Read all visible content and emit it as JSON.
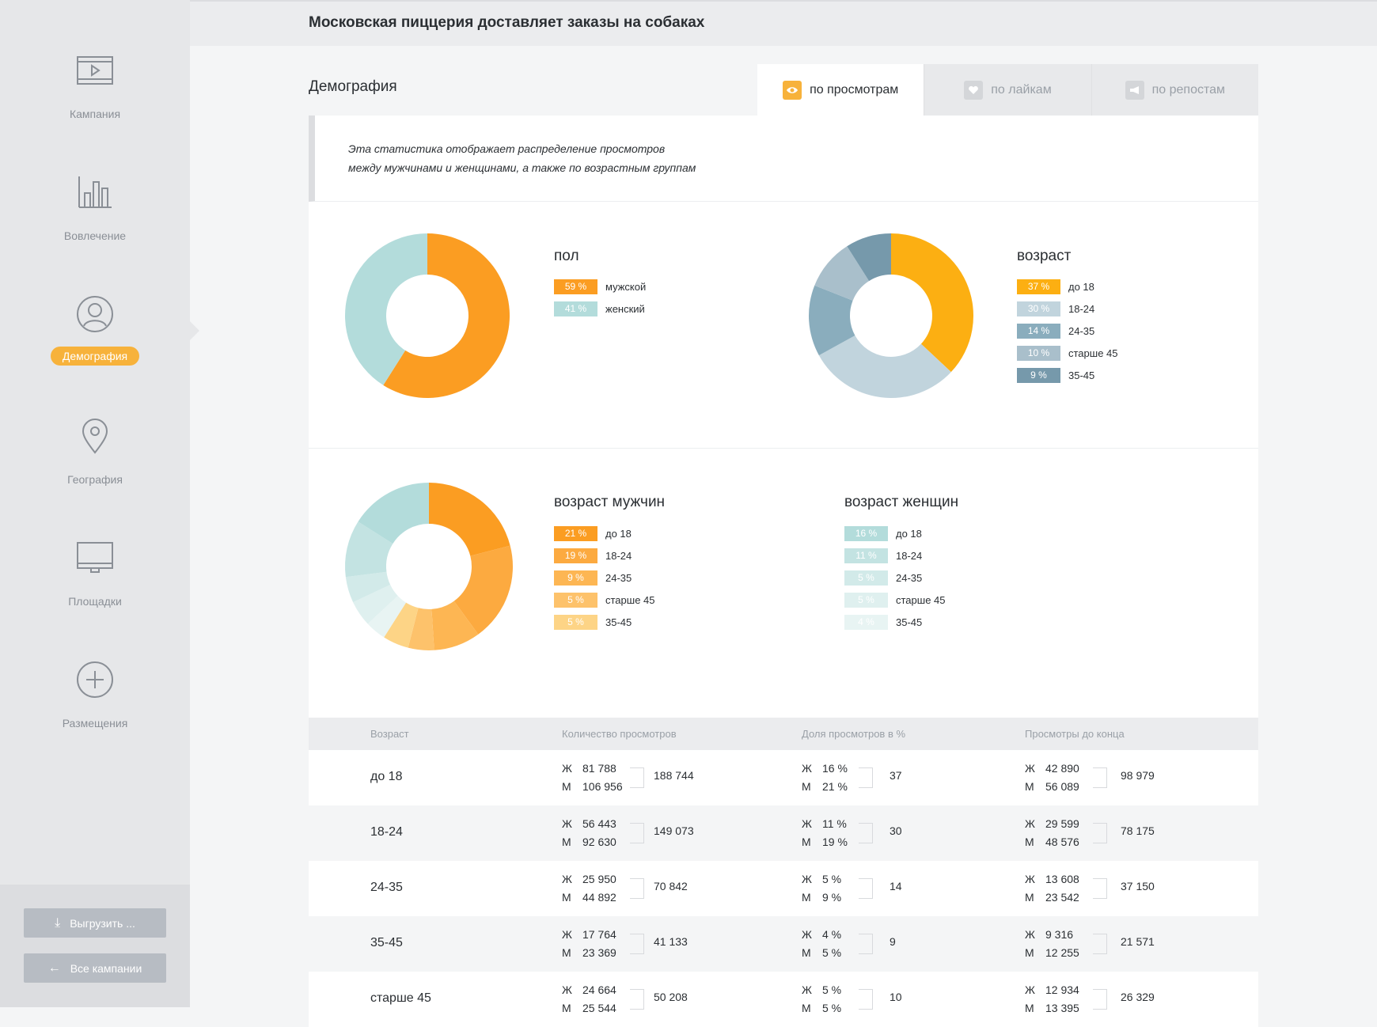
{
  "header": {
    "title": "Московская пиццерия доставляет заказы на собаках"
  },
  "sidebar": {
    "items": [
      {
        "label": "Кампания",
        "icon": "video-icon"
      },
      {
        "label": "Вовлечение",
        "icon": "bar-chart-icon"
      },
      {
        "label": "Демография",
        "icon": "user-icon"
      },
      {
        "label": "География",
        "icon": "map-pin-icon"
      },
      {
        "label": "Площадки",
        "icon": "monitor-icon"
      },
      {
        "label": "Размещения",
        "icon": "plus-circle-icon"
      }
    ],
    "active": "Демография",
    "export_label": "Выгрузить ...",
    "back_label": "Все кампании"
  },
  "section": {
    "title": "Демография",
    "tabs": [
      {
        "label": "по просмотрам",
        "icon": "eye-icon",
        "active": true
      },
      {
        "label": "по лайкам",
        "icon": "heart-icon",
        "active": false
      },
      {
        "label": "по репостам",
        "icon": "megaphone-icon",
        "active": false
      }
    ],
    "description": "Эта статистика отображает распределение просмотров между мужчинами и женщинами, а также по возрастным группам"
  },
  "chart_data": [
    {
      "type": "pie",
      "title": "пол",
      "slices": [
        {
          "label": "мужской",
          "value": 59,
          "value_label": "59 %",
          "color": "#fb9d22"
        },
        {
          "label": "женский",
          "value": 41,
          "value_label": "41 %",
          "color": "#b3dcdb"
        }
      ]
    },
    {
      "type": "pie",
      "title": "возраст",
      "slices": [
        {
          "label": "до 18",
          "value": 37,
          "value_label": "37 %",
          "color": "#fcaf12"
        },
        {
          "label": "18-24",
          "value": 30,
          "value_label": "30 %",
          "color": "#c1d4dd"
        },
        {
          "label": "24-35",
          "value": 14,
          "value_label": "14 %",
          "color": "#8aadbd"
        },
        {
          "label": "старше 45",
          "value": 10,
          "value_label": "10 %",
          "color": "#a9bfcb"
        },
        {
          "label": "35-45",
          "value": 9,
          "value_label": "9 %",
          "color": "#7699ab"
        }
      ]
    },
    {
      "type": "pie",
      "title": "возраст мужчин",
      "legend": [
        {
          "label": "до 18",
          "value": 21,
          "value_label": "21 %",
          "color": "#fb9d22"
        },
        {
          "label": "18-24",
          "value": 19,
          "value_label": "19 %",
          "color": "#fcaa40"
        },
        {
          "label": "24-35",
          "value": 9,
          "value_label": "9 %",
          "color": "#fdb653"
        },
        {
          "label": "старше 45",
          "value": 5,
          "value_label": "5 %",
          "color": "#fdc26b"
        },
        {
          "label": "35-45",
          "value": 5,
          "value_label": "5 %",
          "color": "#fdd486"
        }
      ]
    },
    {
      "type": "pie",
      "title": "возраст женщин",
      "legend": [
        {
          "label": "до 18",
          "value": 16,
          "value_label": "16 %",
          "color": "#b3dcdb"
        },
        {
          "label": "18-24",
          "value": 11,
          "value_label": "11 %",
          "color": "#c3e3e2"
        },
        {
          "label": "24-35",
          "value": 5,
          "value_label": "5 %",
          "color": "#d2eae9"
        },
        {
          "label": "старше 45",
          "value": 5,
          "value_label": "5 %",
          "color": "#dff0ef"
        },
        {
          "label": "35-45",
          "value": 4,
          "value_label": "4 %",
          "color": "#e8f4f3"
        }
      ]
    }
  ],
  "table": {
    "headers": [
      "Возраст",
      "Количество просмотров",
      "Доля просмотров в %",
      "Просмотры до конца"
    ],
    "f_label": "Ж",
    "m_label": "М",
    "rows": [
      {
        "age": "до 18",
        "views": {
          "f": "81 788",
          "m": "106 956",
          "total": "188 744"
        },
        "share": {
          "f": "16 %",
          "m": "21 %",
          "total": "37"
        },
        "complete": {
          "f": "42 890",
          "m": "56 089",
          "total": "98 979"
        }
      },
      {
        "age": "18-24",
        "views": {
          "f": "56 443",
          "m": "92 630",
          "total": "149 073"
        },
        "share": {
          "f": "11 %",
          "m": "19 %",
          "total": "30"
        },
        "complete": {
          "f": "29 599",
          "m": "48 576",
          "total": "78 175"
        }
      },
      {
        "age": "24-35",
        "views": {
          "f": "25 950",
          "m": "44 892",
          "total": "70 842"
        },
        "share": {
          "f": "5 %",
          "m": "9 %",
          "total": "14"
        },
        "complete": {
          "f": "13 608",
          "m": "23 542",
          "total": "37 150"
        }
      },
      {
        "age": "35-45",
        "views": {
          "f": "17 764",
          "m": "23 369",
          "total": "41 133"
        },
        "share": {
          "f": "4 %",
          "m": "5 %",
          "total": "9"
        },
        "complete": {
          "f": "9 316",
          "m": "12 255",
          "total": "21 571"
        }
      },
      {
        "age": "старше 45",
        "views": {
          "f": "24 664",
          "m": "25 544",
          "total": "50 208"
        },
        "share": {
          "f": "5 %",
          "m": "5 %",
          "total": "10"
        },
        "complete": {
          "f": "12 934",
          "m": "13 395",
          "total": "26 329"
        }
      }
    ]
  }
}
